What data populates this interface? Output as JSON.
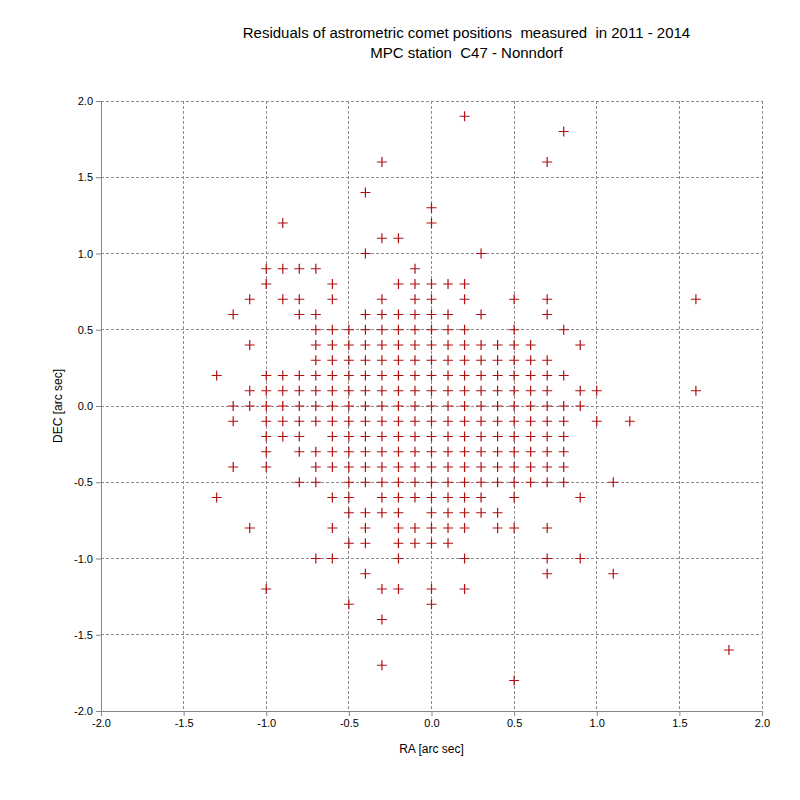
{
  "chart_data": {
    "type": "scatter",
    "title": "Residuals of astrometric comet positions  measured  in 2011 - 2014",
    "subtitle": "MPC station  C47 - Nonndorf",
    "x_label": "RA [arc sec]",
    "y_label": "DEC [arc sec]",
    "color": "#b01010",
    "marker": "plus",
    "grid": true,
    "xlim": [
      -2.0,
      2.0
    ],
    "ylim": [
      -2.0,
      2.0
    ],
    "xticks": [
      {
        "value": -2.0,
        "label": "-2.0"
      },
      -1.5,
      {
        "value": -1.0,
        "label": "-1.0"
      },
      -0.5,
      {
        "value": 0.0,
        "label": "0.0"
      },
      0.5,
      {
        "value": 1.0,
        "label": "1.0"
      },
      1.5,
      {
        "value": 2.0,
        "label": "2.0"
      }
    ],
    "yticks": [
      {
        "value": -2.0,
        "label": "-2.0"
      },
      -1.5,
      {
        "value": -1.0,
        "label": "-1.0"
      },
      -0.5,
      {
        "value": 0.0,
        "label": "0.0"
      },
      0.5,
      {
        "value": 1.0,
        "label": "1.0"
      },
      1.5,
      {
        "value": 2.0,
        "label": "2.0"
      }
    ],
    "x": [
      0.2,
      0.8,
      -0.3,
      0.7,
      -0.4,
      0.0,
      -0.9,
      0.0,
      -0.3,
      -0.2,
      -0.4,
      0.3,
      -1.0,
      -0.9,
      -0.8,
      -0.7,
      -0.1,
      -1.0,
      -0.6,
      -0.2,
      -0.1,
      0.0,
      0.1,
      0.2,
      -1.1,
      -0.9,
      -0.8,
      -0.6,
      -0.3,
      -0.1,
      0.0,
      0.2,
      0.5,
      0.7,
      1.6,
      -1.2,
      -0.8,
      -0.7,
      -0.4,
      -0.3,
      -0.2,
      -0.1,
      0.0,
      0.1,
      0.3,
      0.7,
      -0.7,
      -0.6,
      -0.5,
      -0.4,
      -0.3,
      -0.2,
      -0.1,
      0.0,
      0.1,
      0.2,
      0.5,
      0.8,
      -1.1,
      -0.7,
      -0.6,
      -0.5,
      -0.4,
      -0.3,
      -0.2,
      -0.1,
      0.0,
      0.1,
      0.2,
      0.3,
      0.4,
      0.5,
      0.6,
      0.9,
      -0.7,
      -0.6,
      -0.5,
      -0.4,
      -0.3,
      -0.2,
      -0.1,
      0.0,
      0.1,
      0.2,
      0.3,
      0.4,
      0.5,
      0.6,
      0.7,
      -1.3,
      -1.0,
      -0.9,
      -0.8,
      -0.7,
      -0.6,
      -0.5,
      -0.4,
      -0.3,
      -0.2,
      -0.1,
      0.0,
      0.1,
      0.2,
      0.3,
      0.4,
      0.5,
      0.6,
      0.7,
      0.8,
      -1.1,
      -1.0,
      -0.9,
      -0.8,
      -0.7,
      -0.6,
      -0.5,
      -0.4,
      -0.3,
      -0.2,
      -0.1,
      0.0,
      0.1,
      0.2,
      0.3,
      0.4,
      0.5,
      0.6,
      0.7,
      0.9,
      1.0,
      1.6,
      -1.2,
      -1.1,
      -1.0,
      -0.9,
      -0.8,
      -0.7,
      -0.6,
      -0.5,
      -0.4,
      -0.3,
      -0.2,
      -0.1,
      0.0,
      0.1,
      0.2,
      0.3,
      0.4,
      0.5,
      0.6,
      0.7,
      0.8,
      0.9,
      -1.2,
      -1.0,
      -0.9,
      -0.8,
      -0.7,
      -0.6,
      -0.5,
      -0.4,
      -0.3,
      -0.2,
      -0.1,
      0.0,
      0.1,
      0.2,
      0.3,
      0.4,
      0.5,
      0.6,
      0.7,
      0.8,
      1.0,
      1.2,
      -1.0,
      -0.9,
      -0.8,
      -0.6,
      -0.5,
      -0.4,
      -0.3,
      -0.2,
      -0.1,
      0.0,
      0.1,
      0.2,
      0.3,
      0.4,
      0.5,
      0.6,
      0.7,
      0.8,
      -1.0,
      -0.8,
      -0.7,
      -0.6,
      -0.5,
      -0.4,
      -0.3,
      -0.2,
      -0.1,
      0.0,
      0.1,
      0.2,
      0.3,
      0.4,
      0.5,
      0.6,
      0.7,
      0.8,
      -1.2,
      -1.0,
      -0.7,
      -0.6,
      -0.5,
      -0.4,
      -0.3,
      -0.2,
      -0.1,
      0.0,
      0.1,
      0.2,
      0.3,
      0.4,
      0.5,
      0.6,
      0.7,
      0.8,
      -0.8,
      -0.7,
      -0.5,
      -0.4,
      -0.3,
      -0.2,
      -0.1,
      0.0,
      0.1,
      0.2,
      0.3,
      0.4,
      0.5,
      0.6,
      0.7,
      0.8,
      1.1,
      -1.3,
      -0.6,
      -0.5,
      -0.3,
      -0.2,
      -0.1,
      0.0,
      0.1,
      0.2,
      0.3,
      0.5,
      0.9,
      -0.5,
      -0.4,
      -0.3,
      -0.2,
      0.0,
      0.1,
      0.2,
      0.3,
      0.4,
      -1.1,
      -0.6,
      -0.4,
      -0.2,
      -0.1,
      0.0,
      0.1,
      0.2,
      0.4,
      0.5,
      0.7,
      -0.5,
      -0.4,
      -0.2,
      -0.1,
      0.0,
      0.1,
      -0.7,
      -0.6,
      -0.2,
      0.2,
      0.7,
      0.9,
      -0.4,
      0.7,
      1.1,
      -1.0,
      -0.3,
      -0.2,
      0.0,
      0.2,
      -0.5,
      0.0,
      -0.3,
      1.8,
      -0.3,
      0.5
    ],
    "values": [
      1.9,
      1.8,
      1.6,
      1.6,
      1.4,
      1.3,
      1.2,
      1.2,
      1.1,
      1.1,
      1.0,
      1.0,
      0.9,
      0.9,
      0.9,
      0.9,
      0.9,
      0.8,
      0.8,
      0.8,
      0.8,
      0.8,
      0.8,
      0.8,
      0.7,
      0.7,
      0.7,
      0.7,
      0.7,
      0.7,
      0.7,
      0.7,
      0.7,
      0.7,
      0.7,
      0.6,
      0.6,
      0.6,
      0.6,
      0.6,
      0.6,
      0.6,
      0.6,
      0.6,
      0.6,
      0.6,
      0.5,
      0.5,
      0.5,
      0.5,
      0.5,
      0.5,
      0.5,
      0.5,
      0.5,
      0.5,
      0.5,
      0.5,
      0.4,
      0.4,
      0.4,
      0.4,
      0.4,
      0.4,
      0.4,
      0.4,
      0.4,
      0.4,
      0.4,
      0.4,
      0.4,
      0.4,
      0.4,
      0.4,
      0.3,
      0.3,
      0.3,
      0.3,
      0.3,
      0.3,
      0.3,
      0.3,
      0.3,
      0.3,
      0.3,
      0.3,
      0.3,
      0.3,
      0.3,
      0.2,
      0.2,
      0.2,
      0.2,
      0.2,
      0.2,
      0.2,
      0.2,
      0.2,
      0.2,
      0.2,
      0.2,
      0.2,
      0.2,
      0.2,
      0.2,
      0.2,
      0.2,
      0.2,
      0.2,
      0.1,
      0.1,
      0.1,
      0.1,
      0.1,
      0.1,
      0.1,
      0.1,
      0.1,
      0.1,
      0.1,
      0.1,
      0.1,
      0.1,
      0.1,
      0.1,
      0.1,
      0.1,
      0.1,
      0.1,
      0.1,
      0.1,
      0.0,
      0.0,
      0.0,
      0.0,
      0.0,
      0.0,
      0.0,
      0.0,
      0.0,
      0.0,
      0.0,
      0.0,
      0.0,
      0.0,
      0.0,
      0.0,
      0.0,
      0.0,
      0.0,
      0.0,
      0.0,
      0.0,
      -0.1,
      -0.1,
      -0.1,
      -0.1,
      -0.1,
      -0.1,
      -0.1,
      -0.1,
      -0.1,
      -0.1,
      -0.1,
      -0.1,
      -0.1,
      -0.1,
      -0.1,
      -0.1,
      -0.1,
      -0.1,
      -0.1,
      -0.1,
      -0.1,
      -0.1,
      -0.2,
      -0.2,
      -0.2,
      -0.2,
      -0.2,
      -0.2,
      -0.2,
      -0.2,
      -0.2,
      -0.2,
      -0.2,
      -0.2,
      -0.2,
      -0.2,
      -0.2,
      -0.2,
      -0.2,
      -0.2,
      -0.3,
      -0.3,
      -0.3,
      -0.3,
      -0.3,
      -0.3,
      -0.3,
      -0.3,
      -0.3,
      -0.3,
      -0.3,
      -0.3,
      -0.3,
      -0.3,
      -0.3,
      -0.3,
      -0.3,
      -0.3,
      -0.4,
      -0.4,
      -0.4,
      -0.4,
      -0.4,
      -0.4,
      -0.4,
      -0.4,
      -0.4,
      -0.4,
      -0.4,
      -0.4,
      -0.4,
      -0.4,
      -0.4,
      -0.4,
      -0.4,
      -0.4,
      -0.5,
      -0.5,
      -0.5,
      -0.5,
      -0.5,
      -0.5,
      -0.5,
      -0.5,
      -0.5,
      -0.5,
      -0.5,
      -0.5,
      -0.5,
      -0.5,
      -0.5,
      -0.5,
      -0.5,
      -0.6,
      -0.6,
      -0.6,
      -0.6,
      -0.6,
      -0.6,
      -0.6,
      -0.6,
      -0.6,
      -0.6,
      -0.6,
      -0.6,
      -0.7,
      -0.7,
      -0.7,
      -0.7,
      -0.7,
      -0.7,
      -0.7,
      -0.7,
      -0.7,
      -0.8,
      -0.8,
      -0.8,
      -0.8,
      -0.8,
      -0.8,
      -0.8,
      -0.8,
      -0.8,
      -0.8,
      -0.8,
      -0.9,
      -0.9,
      -0.9,
      -0.9,
      -0.9,
      -0.9,
      -1.0,
      -1.0,
      -1.0,
      -1.0,
      -1.0,
      -1.0,
      -1.1,
      -1.1,
      -1.1,
      -1.2,
      -1.2,
      -1.2,
      -1.2,
      -1.2,
      -1.3,
      -1.3,
      -1.4,
      -1.6,
      -1.7,
      -1.8
    ]
  }
}
